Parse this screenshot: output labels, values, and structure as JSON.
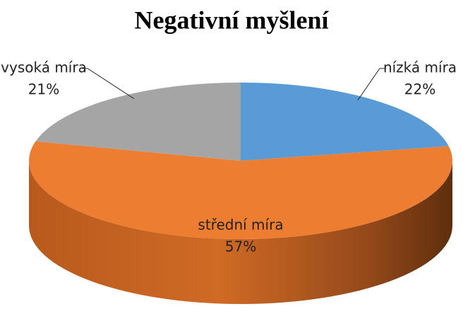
{
  "chart_data": {
    "type": "pie3d",
    "title": "Negativní myšlení",
    "categories": [
      "nízká míra",
      "střední míra",
      "vysoká míra"
    ],
    "values": [
      22,
      57,
      21
    ],
    "value_labels": [
      "22%",
      "57%",
      "21%"
    ],
    "colors": [
      "#5b9bd5",
      "#ed7d31",
      "#a5a5a5"
    ]
  }
}
